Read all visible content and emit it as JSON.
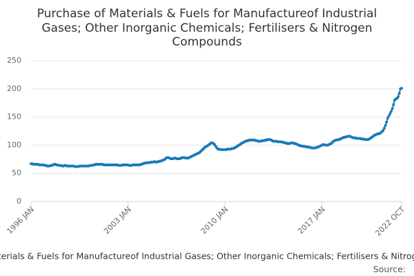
{
  "chart_data": {
    "type": "line",
    "title": [
      "Purchase of Materials & Fuels for Manufactureof Industrial",
      "Gases; Other Inorganic Chemicals; Fertilisers & Nitrogen",
      "Compounds"
    ],
    "source": "Source:",
    "categories": [
      "1996 JAN",
      null,
      null,
      null,
      null,
      null,
      null,
      null,
      null,
      null,
      null,
      null,
      null,
      null,
      null,
      null,
      null,
      null,
      null,
      null,
      null,
      null,
      null,
      null,
      null,
      null,
      null,
      null,
      null,
      null,
      null,
      null,
      null,
      null,
      null,
      null,
      null,
      null,
      null,
      null,
      null,
      null,
      null,
      null,
      null,
      null,
      null,
      null,
      null,
      null,
      null,
      null,
      null,
      null,
      null,
      null,
      null,
      null,
      null,
      null,
      null,
      null,
      null,
      null,
      null,
      null,
      null,
      null,
      null,
      null,
      null,
      null,
      null,
      null,
      null,
      null,
      null,
      null,
      null,
      null,
      null,
      null,
      null,
      null,
      "2003 JAN",
      null,
      null,
      null,
      null,
      null,
      null,
      null,
      null,
      null,
      null,
      null,
      null,
      null,
      null,
      null,
      null,
      null,
      null,
      null,
      null,
      null,
      null,
      null,
      null,
      null,
      null,
      null,
      null,
      null,
      null,
      null,
      null,
      null,
      null,
      null,
      null,
      null,
      null,
      null,
      null,
      null,
      null,
      null,
      null,
      null,
      null,
      null,
      null,
      null,
      null,
      null,
      null,
      null,
      null,
      null,
      null,
      null,
      null,
      null,
      null,
      null,
      null,
      null,
      null,
      null,
      null,
      null,
      null,
      null,
      null,
      null,
      null,
      null,
      null,
      null,
      null,
      null,
      null,
      null,
      null,
      null,
      null,
      null,
      "2010 JAN",
      null,
      null,
      null,
      null,
      null,
      null,
      null,
      null,
      null,
      null,
      null,
      null,
      null,
      null,
      null,
      null,
      null,
      null,
      null,
      null,
      null,
      null,
      null,
      null,
      null,
      null,
      null,
      null,
      null,
      null,
      null,
      null,
      null,
      null,
      null,
      null,
      null,
      null,
      null,
      null,
      null,
      null,
      null,
      null,
      null,
      null,
      null,
      null,
      null,
      null,
      null,
      null,
      null,
      null,
      null,
      null,
      null,
      null,
      null,
      null,
      null,
      null,
      null,
      null,
      null,
      null,
      null,
      null,
      null,
      null,
      null,
      null,
      null,
      null,
      null,
      null,
      null,
      null,
      null,
      null,
      null,
      null,
      null,
      "2017 JAN",
      null,
      null,
      null,
      null,
      null,
      null,
      null,
      null,
      null,
      null,
      null,
      null,
      null,
      null,
      null,
      null,
      null,
      null,
      null,
      null,
      null,
      null,
      null,
      null,
      null,
      null,
      null,
      null,
      null,
      null,
      null,
      null,
      null,
      null,
      null,
      null,
      null,
      null,
      null,
      null,
      null,
      null,
      null,
      null,
      null,
      null,
      null,
      null,
      null,
      null,
      null,
      null,
      null,
      null,
      null,
      null,
      null,
      null,
      null,
      null,
      null,
      null,
      null,
      null,
      null,
      null,
      null,
      null,
      "2022 OCT"
    ],
    "series": [
      {
        "name": "Purchase of Materials & Fuels for Manufactureof Industrial Gases; Other Inorganic Chemicals; Fertilisers & Nitrogen Compounds",
        "color": "#1a7ab8",
        "values": [
          67,
          67,
          66,
          66,
          66,
          66,
          66,
          65,
          65,
          65,
          65,
          65,
          64,
          64,
          63,
          63,
          63,
          64,
          64,
          65,
          66,
          66,
          65,
          65,
          64,
          64,
          64,
          63,
          63,
          64,
          64,
          63,
          63,
          63,
          63,
          63,
          63,
          63,
          62,
          62,
          62,
          62,
          63,
          63,
          63,
          63,
          63,
          63,
          63,
          63,
          63,
          64,
          64,
          64,
          65,
          65,
          66,
          66,
          66,
          66,
          66,
          66,
          66,
          65,
          65,
          65,
          65,
          65,
          65,
          65,
          65,
          65,
          65,
          65,
          65,
          65,
          64,
          64,
          64,
          65,
          65,
          65,
          65,
          65,
          65,
          64,
          64,
          64,
          65,
          65,
          65,
          65,
          65,
          65,
          65,
          66,
          66,
          67,
          68,
          68,
          69,
          69,
          69,
          69,
          70,
          70,
          70,
          71,
          70,
          70,
          71,
          71,
          72,
          72,
          73,
          74,
          75,
          77,
          78,
          78,
          77,
          76,
          76,
          76,
          77,
          77,
          76,
          76,
          76,
          76,
          77,
          78,
          78,
          78,
          77,
          77,
          77,
          78,
          79,
          80,
          81,
          82,
          83,
          84,
          85,
          86,
          87,
          89,
          91,
          93,
          95,
          97,
          98,
          99,
          101,
          102,
          104,
          104,
          103,
          101,
          98,
          95,
          93,
          93,
          92,
          92,
          92,
          92,
          92,
          92,
          93,
          93,
          93,
          93,
          94,
          94,
          95,
          96,
          97,
          99,
          100,
          101,
          103,
          104,
          105,
          106,
          107,
          108,
          108,
          109,
          109,
          109,
          109,
          109,
          109,
          108,
          108,
          107,
          107,
          107,
          108,
          108,
          108,
          109,
          109,
          110,
          110,
          110,
          109,
          108,
          107,
          107,
          107,
          107,
          106,
          106,
          106,
          106,
          105,
          105,
          104,
          104,
          103,
          103,
          103,
          104,
          104,
          104,
          103,
          103,
          102,
          101,
          100,
          99,
          99,
          98,
          98,
          98,
          97,
          97,
          97,
          96,
          96,
          95,
          95,
          95,
          95,
          96,
          96,
          97,
          98,
          99,
          100,
          101,
          101,
          100,
          100,
          100,
          101,
          102,
          103,
          105,
          107,
          108,
          109,
          109,
          110,
          110,
          111,
          112,
          113,
          114,
          114,
          115,
          115,
          116,
          116,
          115,
          114,
          113,
          113,
          113,
          112,
          112,
          112,
          112,
          111,
          111,
          111,
          110,
          110,
          110,
          110,
          111,
          112,
          114,
          115,
          117,
          118,
          119,
          120,
          120,
          121,
          122,
          124,
          126,
          130,
          135,
          141,
          148,
          152,
          156,
          160,
          165,
          172,
          180,
          182,
          183,
          186,
          192,
          200,
          201
        ]
      }
    ],
    "ylim": [
      0,
      250
    ],
    "yticks": [
      0,
      50,
      100,
      150,
      200,
      250
    ],
    "grid": true
  }
}
